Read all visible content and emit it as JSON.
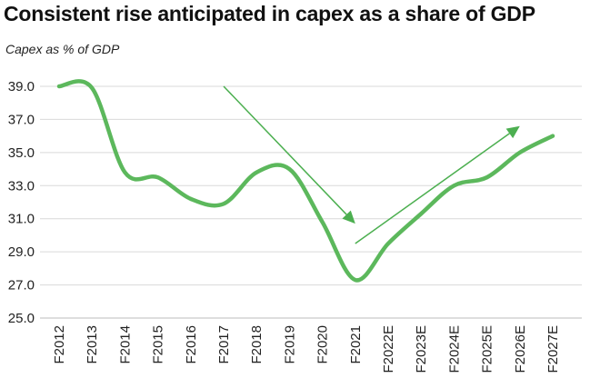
{
  "chart_data": {
    "type": "line",
    "title": "Consistent rise anticipated in capex as a share of GDP",
    "ylabel": "Capex as % of GDP",
    "xlabel": "",
    "ylim": [
      25.0,
      39.0
    ],
    "yticks": [
      "25.0",
      "27.0",
      "29.0",
      "31.0",
      "33.0",
      "35.0",
      "37.0",
      "39.0"
    ],
    "grid": true,
    "legend": "none",
    "categories": [
      "F2012",
      "F2013",
      "F2014",
      "F2015",
      "F2016",
      "F2017",
      "F2018",
      "F2019",
      "F2020",
      "F2021",
      "F2022E",
      "F2023E",
      "F2024E",
      "F2025E",
      "F2026E",
      "F2027E"
    ],
    "series": [
      {
        "values": [
          39.0,
          38.9,
          33.8,
          33.5,
          32.2,
          31.9,
          33.8,
          34.0,
          30.8,
          27.3,
          29.5,
          31.3,
          33.0,
          33.5,
          35.0,
          36.0
        ]
      }
    ],
    "annotations": [
      {
        "type": "arrow",
        "from": {
          "x": "F2017",
          "y": 39.0
        },
        "to": {
          "x": "F2021",
          "y": 30.7
        }
      },
      {
        "type": "arrow",
        "from": {
          "x": "F2021",
          "y": 29.5
        },
        "to": {
          "x": "F2026E",
          "y": 36.6
        }
      }
    ],
    "colors": {
      "line": "#5cb85c",
      "arrow": "#4caf50",
      "grid": "#d9d9d9"
    }
  }
}
